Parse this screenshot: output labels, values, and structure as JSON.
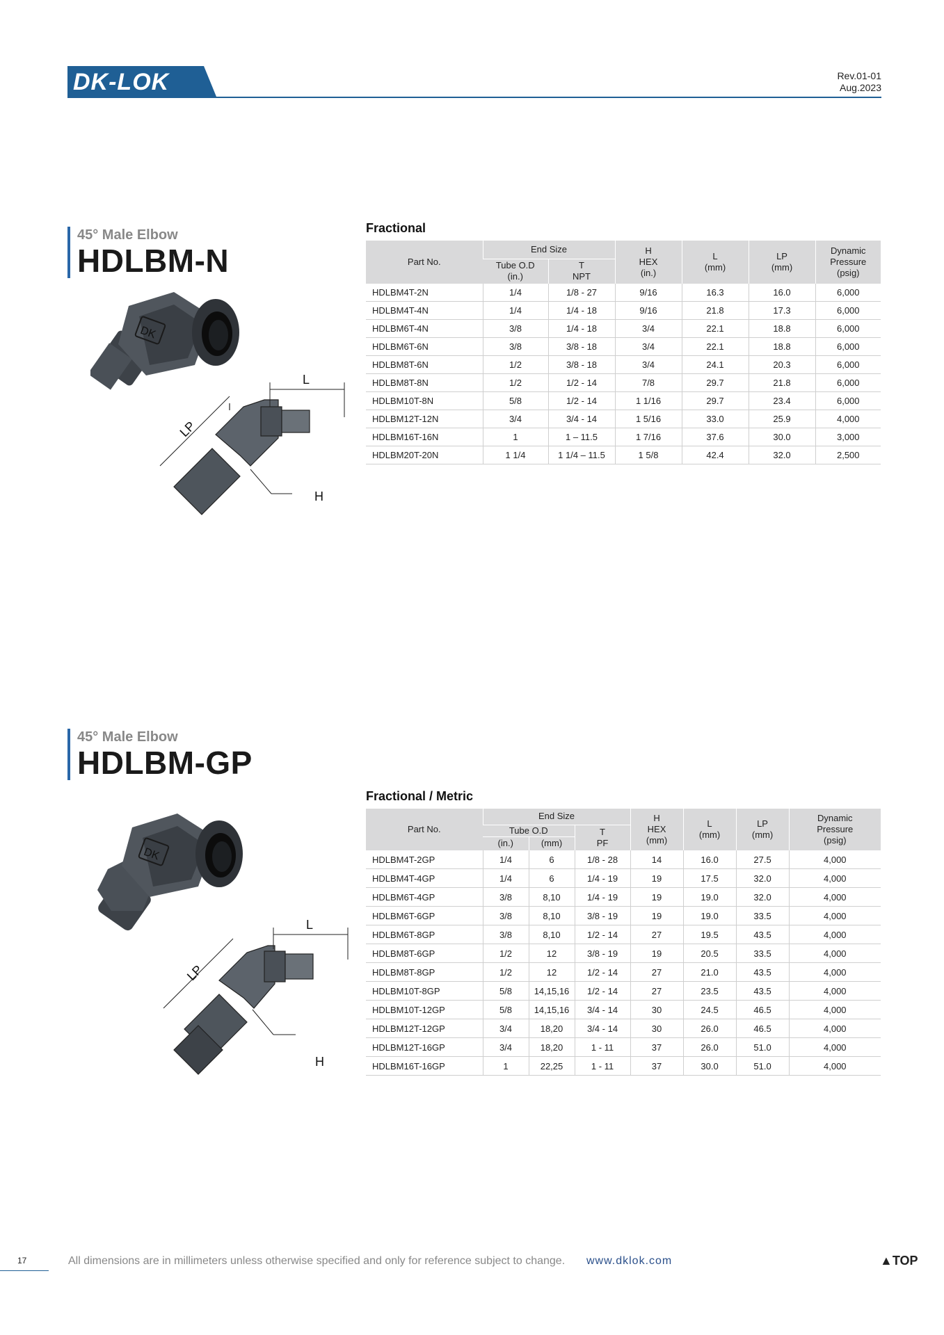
{
  "header": {
    "logo_text": "DK-LOK",
    "revision": "Rev.01-01",
    "date": "Aug.2023"
  },
  "section1": {
    "subtitle": "45° Male Elbow",
    "title": "HDLBM-N",
    "table_title": "Fractional",
    "dim_labels": {
      "l": "L",
      "lp": "LP",
      "h": "H"
    },
    "headers": {
      "part_no": "Part No.",
      "end_size": "End Size",
      "tube_od": "Tube O.D",
      "tube_od_unit": "(in.)",
      "t": "T",
      "t_unit": "NPT",
      "h": "H",
      "h_sub": "HEX",
      "h_unit": "(in.)",
      "l": "L",
      "l_unit": "(mm)",
      "lp": "LP",
      "lp_unit": "(mm)",
      "dp1": "Dynamic",
      "dp2": "Pressure",
      "dp3": "(psig)"
    },
    "rows": [
      [
        "HDLBM4T-2N",
        "1/4",
        "1/8 - 27",
        "9/16",
        "16.3",
        "16.0",
        "6,000"
      ],
      [
        "HDLBM4T-4N",
        "1/4",
        "1/4 - 18",
        "9/16",
        "21.8",
        "17.3",
        "6,000"
      ],
      [
        "HDLBM6T-4N",
        "3/8",
        "1/4 - 18",
        "3/4",
        "22.1",
        "18.8",
        "6,000"
      ],
      [
        "HDLBM6T-6N",
        "3/8",
        "3/8 - 18",
        "3/4",
        "22.1",
        "18.8",
        "6,000"
      ],
      [
        "HDLBM8T-6N",
        "1/2",
        "3/8 - 18",
        "3/4",
        "24.1",
        "20.3",
        "6,000"
      ],
      [
        "HDLBM8T-8N",
        "1/2",
        "1/2 - 14",
        "7/8",
        "29.7",
        "21.8",
        "6,000"
      ],
      [
        "HDLBM10T-8N",
        "5/8",
        "1/2 - 14",
        "1 1/16",
        "29.7",
        "23.4",
        "6,000"
      ],
      [
        "HDLBM12T-12N",
        "3/4",
        "3/4 - 14",
        "1 5/16",
        "33.0",
        "25.9",
        "4,000"
      ],
      [
        "HDLBM16T-16N",
        "1",
        "1 – 11.5",
        "1 7/16",
        "37.6",
        "30.0",
        "3,000"
      ],
      [
        "HDLBM20T-20N",
        "1 1/4",
        "1 1/4 – 11.5",
        "1 5/8",
        "42.4",
        "32.0",
        "2,500"
      ]
    ]
  },
  "section2": {
    "subtitle": "45° Male Elbow",
    "title": "HDLBM-GP",
    "table_title": "Fractional / Metric",
    "dim_labels": {
      "l": "L",
      "lp": "LP",
      "h": "H"
    },
    "headers": {
      "part_no": "Part No.",
      "end_size": "End Size",
      "tube_od": "Tube O.D",
      "tube_od_in": "(in.)",
      "tube_od_mm": "(mm)",
      "t": "T",
      "t_unit": "PF",
      "h": "H",
      "h_sub": "HEX",
      "h_unit": "(mm)",
      "l": "L",
      "l_unit": "(mm)",
      "lp": "LP",
      "lp_unit": "(mm)",
      "dp1": "Dynamic",
      "dp2": "Pressure",
      "dp3": "(psig)"
    },
    "rows": [
      [
        "HDLBM4T-2GP",
        "1/4",
        "6",
        "1/8 - 28",
        "14",
        "16.0",
        "27.5",
        "4,000"
      ],
      [
        "HDLBM4T-4GP",
        "1/4",
        "6",
        "1/4 - 19",
        "19",
        "17.5",
        "32.0",
        "4,000"
      ],
      [
        "HDLBM6T-4GP",
        "3/8",
        "8,10",
        "1/4 - 19",
        "19",
        "19.0",
        "32.0",
        "4,000"
      ],
      [
        "HDLBM6T-6GP",
        "3/8",
        "8,10",
        "3/8 - 19",
        "19",
        "19.0",
        "33.5",
        "4,000"
      ],
      [
        "HDLBM6T-8GP",
        "3/8",
        "8,10",
        "1/2 - 14",
        "27",
        "19.5",
        "43.5",
        "4,000"
      ],
      [
        "HDLBM8T-6GP",
        "1/2",
        "12",
        "3/8 - 19",
        "19",
        "20.5",
        "33.5",
        "4,000"
      ],
      [
        "HDLBM8T-8GP",
        "1/2",
        "12",
        "1/2 - 14",
        "27",
        "21.0",
        "43.5",
        "4,000"
      ],
      [
        "HDLBM10T-8GP",
        "5/8",
        "14,15,16",
        "1/2 - 14",
        "27",
        "23.5",
        "43.5",
        "4,000"
      ],
      [
        "HDLBM10T-12GP",
        "5/8",
        "14,15,16",
        "3/4 - 14",
        "30",
        "24.5",
        "46.5",
        "4,000"
      ],
      [
        "HDLBM12T-12GP",
        "3/4",
        "18,20",
        "3/4 - 14",
        "30",
        "26.0",
        "46.5",
        "4,000"
      ],
      [
        "HDLBM12T-16GP",
        "3/4",
        "18,20",
        "1 - 11",
        "37",
        "26.0",
        "51.0",
        "4,000"
      ],
      [
        "HDLBM16T-16GP",
        "1",
        "22,25",
        "1 - 11",
        "37",
        "30.0",
        "51.0",
        "4,000"
      ]
    ]
  },
  "footer": {
    "page_number": "17",
    "note": "All dimensions are in millimeters unless otherwise specified and only for reference subject to change.",
    "url": "www.dklok.com",
    "top_label": "▲TOP"
  }
}
